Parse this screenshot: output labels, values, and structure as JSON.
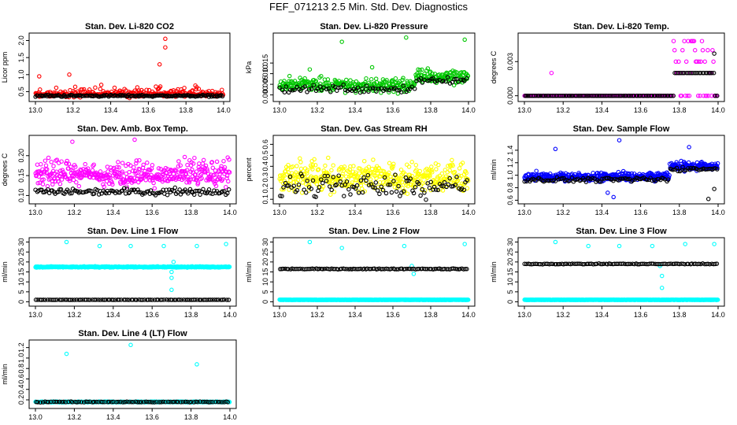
{
  "title": "FEF_071213  2.5 Min. Std. Dev. Diagnostics",
  "colors": {
    "black": "#000000",
    "red": "#ff0000",
    "green": "#00c800",
    "magenta": "#ff00ff",
    "yellow": "#ffff00",
    "blue": "#0000ff",
    "cyan": "#00ffff"
  },
  "chart_data": [
    {
      "type": "scatter",
      "title": "Stan. Dev. Li-820 CO2",
      "ylabel": "Licor ppm",
      "xlim": [
        13.0,
        14.0
      ],
      "ylim": [
        0.28,
        2.15
      ],
      "xticks": [
        "13.0",
        "13.2",
        "13.4",
        "13.6",
        "13.8",
        "14.0"
      ],
      "yticks": [
        "0.5",
        "1.0",
        "1.5",
        "2.0"
      ],
      "series": [
        {
          "name": "primary",
          "color": "red",
          "base": 0.42,
          "spread": 0.12,
          "hi": 0.2,
          "n": 300,
          "outliers": [
            [
              13.02,
              0.95
            ],
            [
              13.18,
              1.0
            ],
            [
              13.35,
              0.7
            ],
            [
              13.66,
              1.3
            ],
            [
              13.69,
              1.8
            ],
            [
              13.69,
              2.05
            ],
            [
              13.64,
              0.65
            ],
            [
              13.85,
              0.68
            ]
          ]
        },
        {
          "name": "secondary",
          "color": "black",
          "base": 0.38,
          "spread": 0.04,
          "hi": 0.0,
          "n": 150,
          "outliers": []
        }
      ]
    },
    {
      "type": "scatter",
      "title": "Stan. Dev. Li-820 Pressure",
      "ylabel": "kPa",
      "xlim": [
        13.0,
        14.0
      ],
      "ylim": [
        -0.002,
        0.028
      ],
      "xticks": [
        "13.0",
        "13.2",
        "13.4",
        "13.6",
        "13.8",
        "14.0"
      ],
      "yticks": [
        "0.000",
        "0.005",
        "0.010",
        "0.015"
      ],
      "series": [
        {
          "name": "primary",
          "color": "green",
          "base": 0.004,
          "spread": 0.004,
          "hi": 0.003,
          "n": 360,
          "step": {
            "at": 13.72,
            "delta": 0.004
          },
          "outliers": [
            [
              13.16,
              0.012
            ],
            [
              13.33,
              0.025
            ],
            [
              13.49,
              0.013
            ],
            [
              13.67,
              0.027
            ],
            [
              13.98,
              0.026
            ]
          ]
        },
        {
          "name": "secondary",
          "color": "black",
          "base": 0.003,
          "spread": 0.003,
          "hi": 0.0,
          "n": 90,
          "step": {
            "at": 13.72,
            "delta": 0.004
          },
          "outliers": []
        }
      ]
    },
    {
      "type": "scatter",
      "title": "Stan. Dev. Li-820 Temp.",
      "ylabel": "degrees C",
      "xlim": [
        13.0,
        14.0
      ],
      "ylim": [
        -0.0003,
        0.0053
      ],
      "xticks": [
        "13.0",
        "13.2",
        "13.4",
        "13.6",
        "13.8",
        "14.0"
      ],
      "yticks": [
        "0.000",
        "0.003"
      ],
      "series": [
        {
          "name": "primary",
          "color": "magenta",
          "base": 0.0,
          "spread": 0.0,
          "hi": 0.0,
          "n": 200,
          "cluster": {
            "from": 13.77,
            "to": 13.98,
            "levels": [
              0.0,
              0.002,
              0.003,
              0.004,
              0.0048
            ]
          },
          "outliers": [
            [
              13.14,
              0.002
            ]
          ]
        },
        {
          "name": "secondary",
          "color": "black",
          "base": 0.0,
          "spread": 0.0,
          "hi": 0.0,
          "n": 120,
          "cluster": {
            "from": 13.77,
            "to": 13.98,
            "levels": [
              0.002
            ]
          },
          "outliers": [
            [
              13.98,
              0.0037
            ]
          ]
        }
      ]
    },
    {
      "type": "scatter",
      "title": "Stan. Dev. Amb. Box Temp.",
      "ylabel": "degrees C",
      "xlim": [
        13.0,
        14.0
      ],
      "ylim": [
        0.085,
        0.245
      ],
      "xticks": [
        "13.0",
        "13.2",
        "13.4",
        "13.6",
        "13.8",
        "14.0"
      ],
      "yticks": [
        "0.10",
        "0.15",
        "0.20"
      ],
      "series": [
        {
          "name": "primary",
          "color": "magenta",
          "base": 0.15,
          "spread": 0.035,
          "hi": 0.03,
          "n": 420,
          "outliers": [
            [
              13.19,
              0.235
            ],
            [
              13.51,
              0.24
            ]
          ]
        },
        {
          "name": "secondary",
          "color": "black",
          "base": 0.11,
          "spread": 0.012,
          "hi": 0.0,
          "n": 130,
          "outliers": []
        }
      ]
    },
    {
      "type": "scatter",
      "title": "Stan. Dev. Gas Stream RH",
      "ylabel": "percent",
      "xlim": [
        13.0,
        14.0
      ],
      "ylim": [
        0.08,
        0.66
      ],
      "xticks": [
        "13.0",
        "13.2",
        "13.4",
        "13.6",
        "13.8",
        "14.0"
      ],
      "yticks": [
        "0.1",
        "0.2",
        "0.3",
        "0.4",
        "0.5",
        "0.6"
      ],
      "series": [
        {
          "name": "primary",
          "color": "yellow",
          "base": 0.28,
          "spread": 0.16,
          "hi": 0.12,
          "n": 420,
          "outliers": []
        },
        {
          "name": "secondary",
          "color": "black",
          "base": 0.2,
          "spread": 0.12,
          "hi": 0.1,
          "n": 110,
          "outliers": []
        }
      ]
    },
    {
      "type": "scatter",
      "title": "Stan. Dev. Sample Flow",
      "ylabel": "ml/min",
      "xlim": [
        13.0,
        14.0
      ],
      "ylim": [
        0.58,
        1.6
      ],
      "xticks": [
        "13.0",
        "13.2",
        "13.4",
        "13.6",
        "13.8",
        "14.0"
      ],
      "yticks": [
        "0.6",
        "0.8",
        "1.0",
        "1.2",
        "1.4"
      ],
      "series": [
        {
          "name": "primary",
          "color": "blue",
          "base": 0.97,
          "spread": 0.09,
          "hi": 0.05,
          "n": 460,
          "step": {
            "at": 13.75,
            "delta": 0.17
          },
          "outliers": [
            [
              13.16,
              1.42
            ],
            [
              13.49,
              1.56
            ],
            [
              13.85,
              1.45
            ],
            [
              13.43,
              0.72
            ],
            [
              13.46,
              0.65
            ]
          ]
        },
        {
          "name": "secondary",
          "color": "black",
          "base": 0.93,
          "spread": 0.05,
          "hi": 0.0,
          "n": 120,
          "step": {
            "at": 13.75,
            "delta": 0.17
          },
          "outliers": [
            [
              13.98,
              0.78
            ],
            [
              13.95,
              0.62
            ]
          ]
        }
      ]
    },
    {
      "type": "scatter",
      "title": "Stan. Dev. Line 1 Flow",
      "ylabel": "ml/min",
      "xlim": [
        13.0,
        14.0
      ],
      "ylim": [
        -1,
        31
      ],
      "xticks": [
        "13.0",
        "13.2",
        "13.4",
        "13.6",
        "13.8",
        "14.0"
      ],
      "yticks": [
        "0",
        "5",
        "10",
        "15",
        "20",
        "25",
        "30"
      ],
      "series": [
        {
          "name": "primary",
          "color": "cyan",
          "base": 17.5,
          "spread": 0.4,
          "hi": 0.0,
          "n": 500,
          "outliers": [
            [
              13.16,
              30
            ],
            [
              13.33,
              28
            ],
            [
              13.49,
              28
            ],
            [
              13.66,
              28
            ],
            [
              13.83,
              28
            ],
            [
              13.98,
              29
            ],
            [
              13.7,
              15
            ],
            [
              13.7,
              12
            ],
            [
              13.7,
              6
            ],
            [
              13.71,
              20
            ]
          ]
        },
        {
          "name": "secondary",
          "color": "black",
          "base": 1.0,
          "spread": 0.05,
          "hi": 0.0,
          "n": 100,
          "outliers": []
        }
      ]
    },
    {
      "type": "scatter",
      "title": "Stan. Dev. Line 2 Flow",
      "ylabel": "ml/min",
      "xlim": [
        13.0,
        14.0
      ],
      "ylim": [
        -1,
        31
      ],
      "xticks": [
        "13.0",
        "13.2",
        "13.4",
        "13.6",
        "13.8",
        "14.0"
      ],
      "yticks": [
        "0",
        "5",
        "10",
        "15",
        "20",
        "25",
        "30"
      ],
      "series": [
        {
          "name": "primary",
          "color": "cyan",
          "base": 1.0,
          "spread": 0.15,
          "hi": 0.0,
          "n": 500,
          "outliers": [
            [
              13.16,
              30
            ],
            [
              13.33,
              27
            ],
            [
              13.66,
              28
            ],
            [
              13.98,
              29
            ],
            [
              13.71,
              14
            ],
            [
              13.7,
              18
            ]
          ]
        },
        {
          "name": "secondary",
          "color": "black",
          "base": 16.5,
          "spread": 0.3,
          "hi": 0.0,
          "n": 110,
          "outliers": []
        }
      ]
    },
    {
      "type": "scatter",
      "title": "Stan. Dev. Line 3 Flow",
      "ylabel": "ml/min",
      "xlim": [
        13.0,
        14.0
      ],
      "ylim": [
        -1,
        31
      ],
      "xticks": [
        "13.0",
        "13.2",
        "13.4",
        "13.6",
        "13.8",
        "14.0"
      ],
      "yticks": [
        "0",
        "5",
        "10",
        "15",
        "20",
        "25",
        "30"
      ],
      "series": [
        {
          "name": "primary",
          "color": "cyan",
          "base": 1.0,
          "spread": 0.15,
          "hi": 0.0,
          "n": 500,
          "outliers": [
            [
              13.16,
              30
            ],
            [
              13.33,
              28
            ],
            [
              13.49,
              28
            ],
            [
              13.66,
              28
            ],
            [
              13.83,
              29
            ],
            [
              13.98,
              29
            ],
            [
              13.71,
              13
            ],
            [
              13.71,
              7
            ],
            [
              13.7,
              18
            ]
          ]
        },
        {
          "name": "secondary",
          "color": "black",
          "base": 19.0,
          "spread": 0.3,
          "hi": 0.0,
          "n": 110,
          "outliers": []
        }
      ]
    },
    {
      "type": "scatter",
      "title": "Stan. Dev. Line 4 (LT) Flow",
      "ylabel": "ml/min",
      "xlim": [
        13.0,
        14.0
      ],
      "ylim": [
        0.08,
        1.3
      ],
      "xticks": [
        "13.0",
        "13.2",
        "13.4",
        "13.6",
        "13.8",
        "14.0"
      ],
      "yticks": [
        "0.2",
        "0.4",
        "0.6",
        "0.8",
        "1.0",
        "1.2"
      ],
      "series": [
        {
          "name": "primary",
          "color": "cyan",
          "base": 0.16,
          "spread": 0.01,
          "hi": 0.0,
          "n": 500,
          "outliers": [
            [
              13.16,
              1.08
            ],
            [
              13.49,
              1.25
            ],
            [
              13.83,
              0.88
            ]
          ]
        },
        {
          "name": "secondary",
          "color": "black",
          "base": 0.16,
          "spread": 0.01,
          "hi": 0.0,
          "n": 90,
          "outliers": []
        }
      ]
    }
  ]
}
